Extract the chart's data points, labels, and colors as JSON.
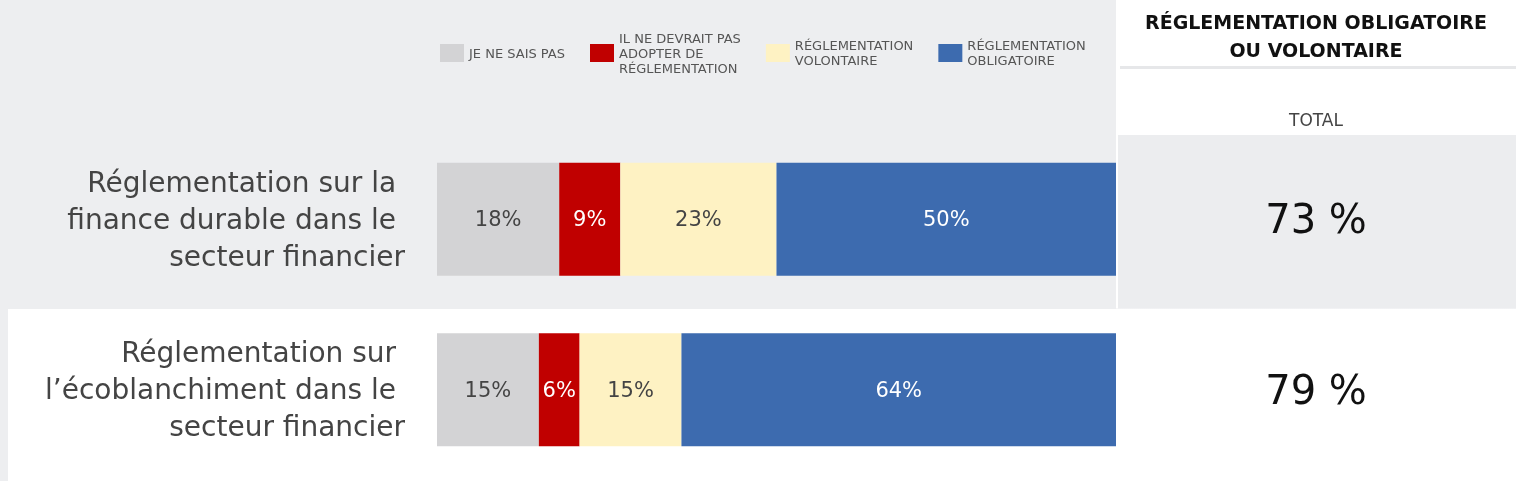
{
  "chart_data": {
    "type": "bar",
    "orientation": "horizontal",
    "stacked": true,
    "categories": [
      "Réglementation sur la finance durable dans le secteur financier",
      "Réglementation sur l’écoblanchiment dans le secteur financier"
    ],
    "series": [
      {
        "name": "JE NE SAIS PAS",
        "color": "#d3d3d5",
        "values": [
          18,
          15
        ],
        "value_labels": [
          "18%",
          "15%"
        ]
      },
      {
        "name": "IL NE DEVRAIT PAS ADOPTER DE RÉGLEMENTATION",
        "color": "#c00000",
        "values": [
          9,
          6
        ],
        "value_labels": [
          "9%",
          "6%"
        ]
      },
      {
        "name": "RÉGLEMENTATION VOLONTAIRE",
        "color": "#fef2c3",
        "values": [
          23,
          15
        ],
        "value_labels": [
          "23%",
          "15%"
        ]
      },
      {
        "name": "RÉGLEMENTATION OBLIGATOIRE",
        "color": "#3d6baf",
        "values": [
          50,
          64
        ],
        "value_labels": [
          "50%",
          "64%"
        ]
      }
    ],
    "xlim": [
      0,
      100
    ],
    "tick_labels": "y",
    "legend": "top",
    "annotations": [
      "RÉGLEMENTATION OBLIGATOIRE OU VOLONTAIRE",
      "TOTAL",
      "73 %",
      "79 %"
    ]
  }
}
